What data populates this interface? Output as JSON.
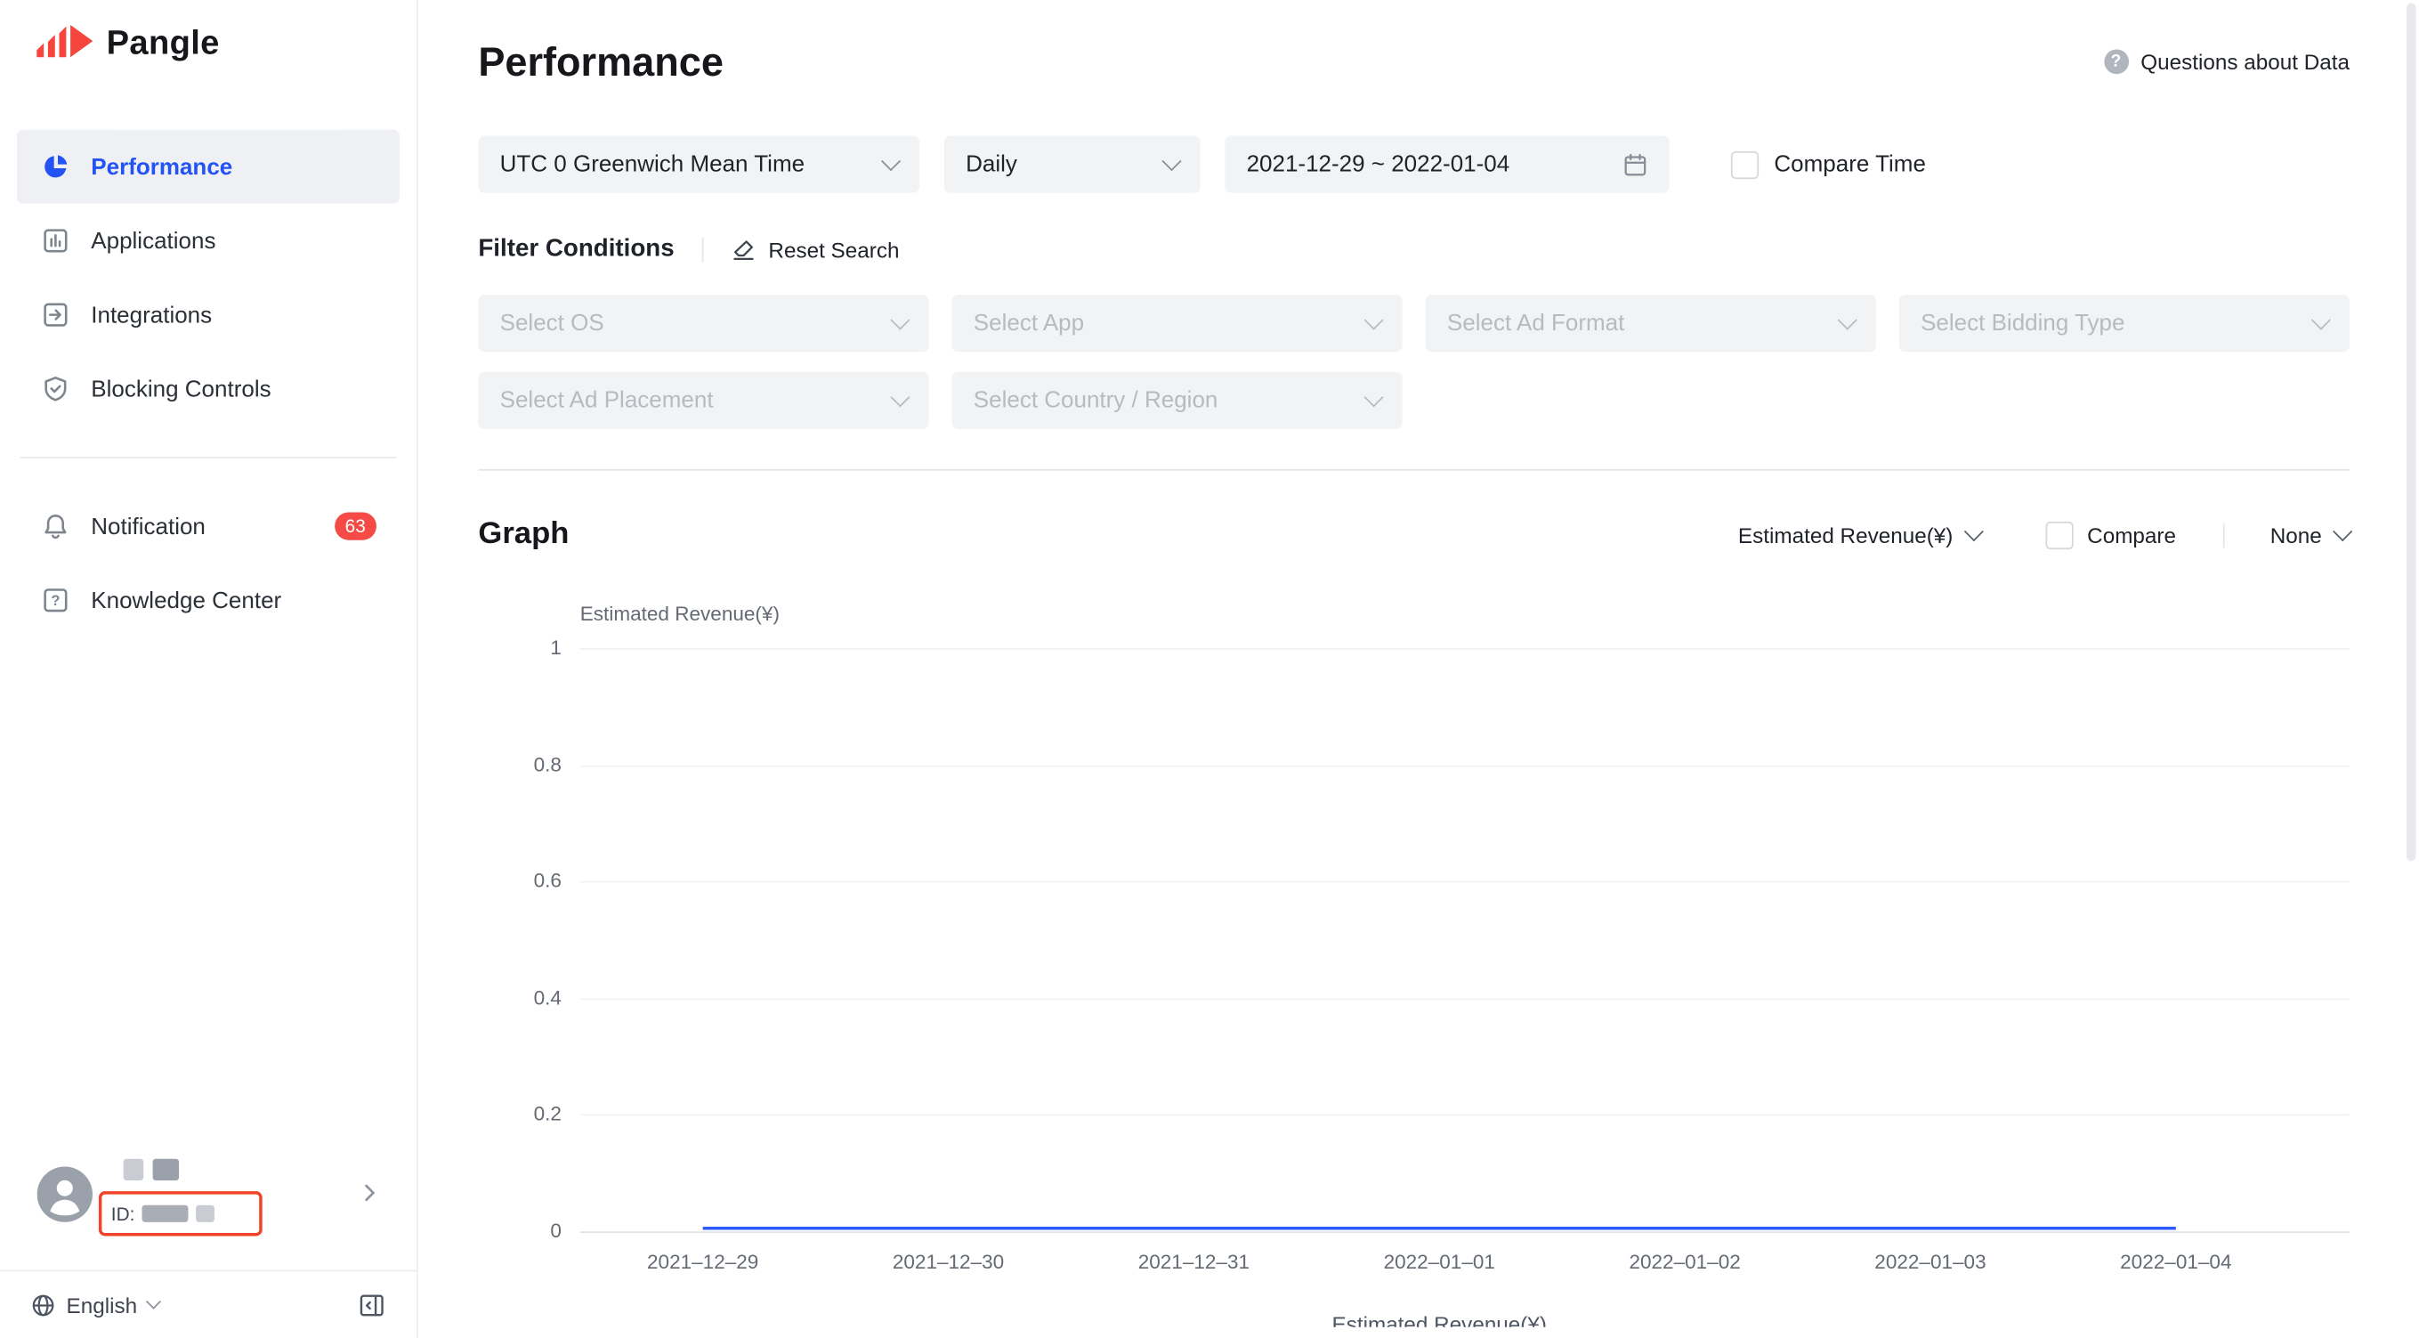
{
  "colors": {
    "accent_blue": "#2453f5",
    "brand_red": "#f5453d",
    "badge_red": "#f54a45",
    "chart_line": "#2e5bff",
    "highlight_outline": "#f04327"
  },
  "sidebar": {
    "logo_text": "Pangle",
    "items": [
      {
        "label": "Performance"
      },
      {
        "label": "Applications"
      },
      {
        "label": "Integrations"
      },
      {
        "label": "Blocking Controls"
      },
      {
        "label": "Notification",
        "badge": "63"
      },
      {
        "label": "Knowledge Center"
      }
    ],
    "user_id_label": "ID:",
    "language_label": "English"
  },
  "header": {
    "title": "Performance",
    "help_glyph": "?",
    "help_label": "Questions about Data"
  },
  "filters": {
    "timezone": "UTC 0 Greenwich Mean Time",
    "granularity": "Daily",
    "date_range": "2021-12-29 ~ 2022-01-04",
    "compare_time_label": "Compare Time",
    "conditions_label": "Filter Conditions",
    "reset_label": "Reset Search",
    "selects": [
      "Select OS",
      "Select App",
      "Select Ad Format",
      "Select Bidding Type",
      "Select Ad Placement",
      "Select Country / Region"
    ]
  },
  "graph": {
    "title": "Graph",
    "metric_selector": "Estimated Revenue(¥)",
    "compare_label": "Compare",
    "dimension_selector": "None"
  },
  "chart_data": {
    "type": "line",
    "title": "",
    "ylabel": "Estimated Revenue(¥)",
    "x": [
      "2021–12–29",
      "2021–12–30",
      "2021–12–31",
      "2022–01–01",
      "2022–01–02",
      "2022–01–03",
      "2022–01–04"
    ],
    "series": [
      {
        "name": "Estimated Revenue(¥)",
        "values": [
          0,
          0,
          0,
          0,
          0,
          0,
          0
        ]
      }
    ],
    "ylim": [
      0,
      1
    ],
    "yticks": [
      1,
      0.8,
      0.6,
      0.4,
      0.2,
      0
    ],
    "grid": true,
    "legend_position": "bottom",
    "legend": "Estimated Revenue(¥)"
  }
}
